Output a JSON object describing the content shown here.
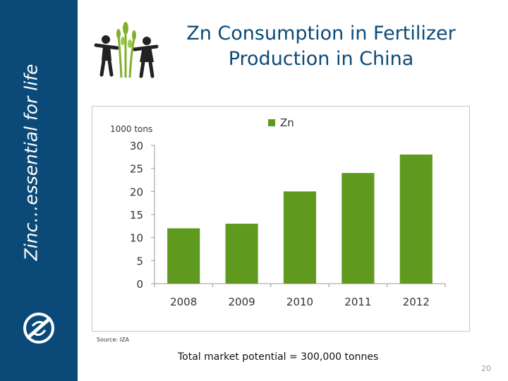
{
  "sidebar": {
    "tagline": "Zinc…essential for life"
  },
  "header": {
    "title": "Zn Consumption in Fertilizer Production in China"
  },
  "chart_data": {
    "type": "bar",
    "title": "",
    "ylabel": "1000 tons",
    "xlabel": "",
    "categories": [
      "2008",
      "2009",
      "2010",
      "2011",
      "2012"
    ],
    "series": [
      {
        "name": "Zn",
        "values": [
          12,
          13,
          20,
          24,
          28
        ]
      }
    ],
    "ylim": [
      0,
      30
    ],
    "yticks": [
      0,
      5,
      10,
      15,
      20,
      25,
      30
    ],
    "legend_position": "top-center",
    "grid": false,
    "colors": {
      "bar": "#5f9a1e",
      "axis": "#9a9a9a",
      "text": "#333333"
    }
  },
  "source_note": "Source: IZA",
  "footer": {
    "text": "Total market potential = 300,000 tonnes"
  },
  "page_number": "20",
  "colors": {
    "sidebar": "#0b4a78",
    "title": "#0b4a78"
  }
}
